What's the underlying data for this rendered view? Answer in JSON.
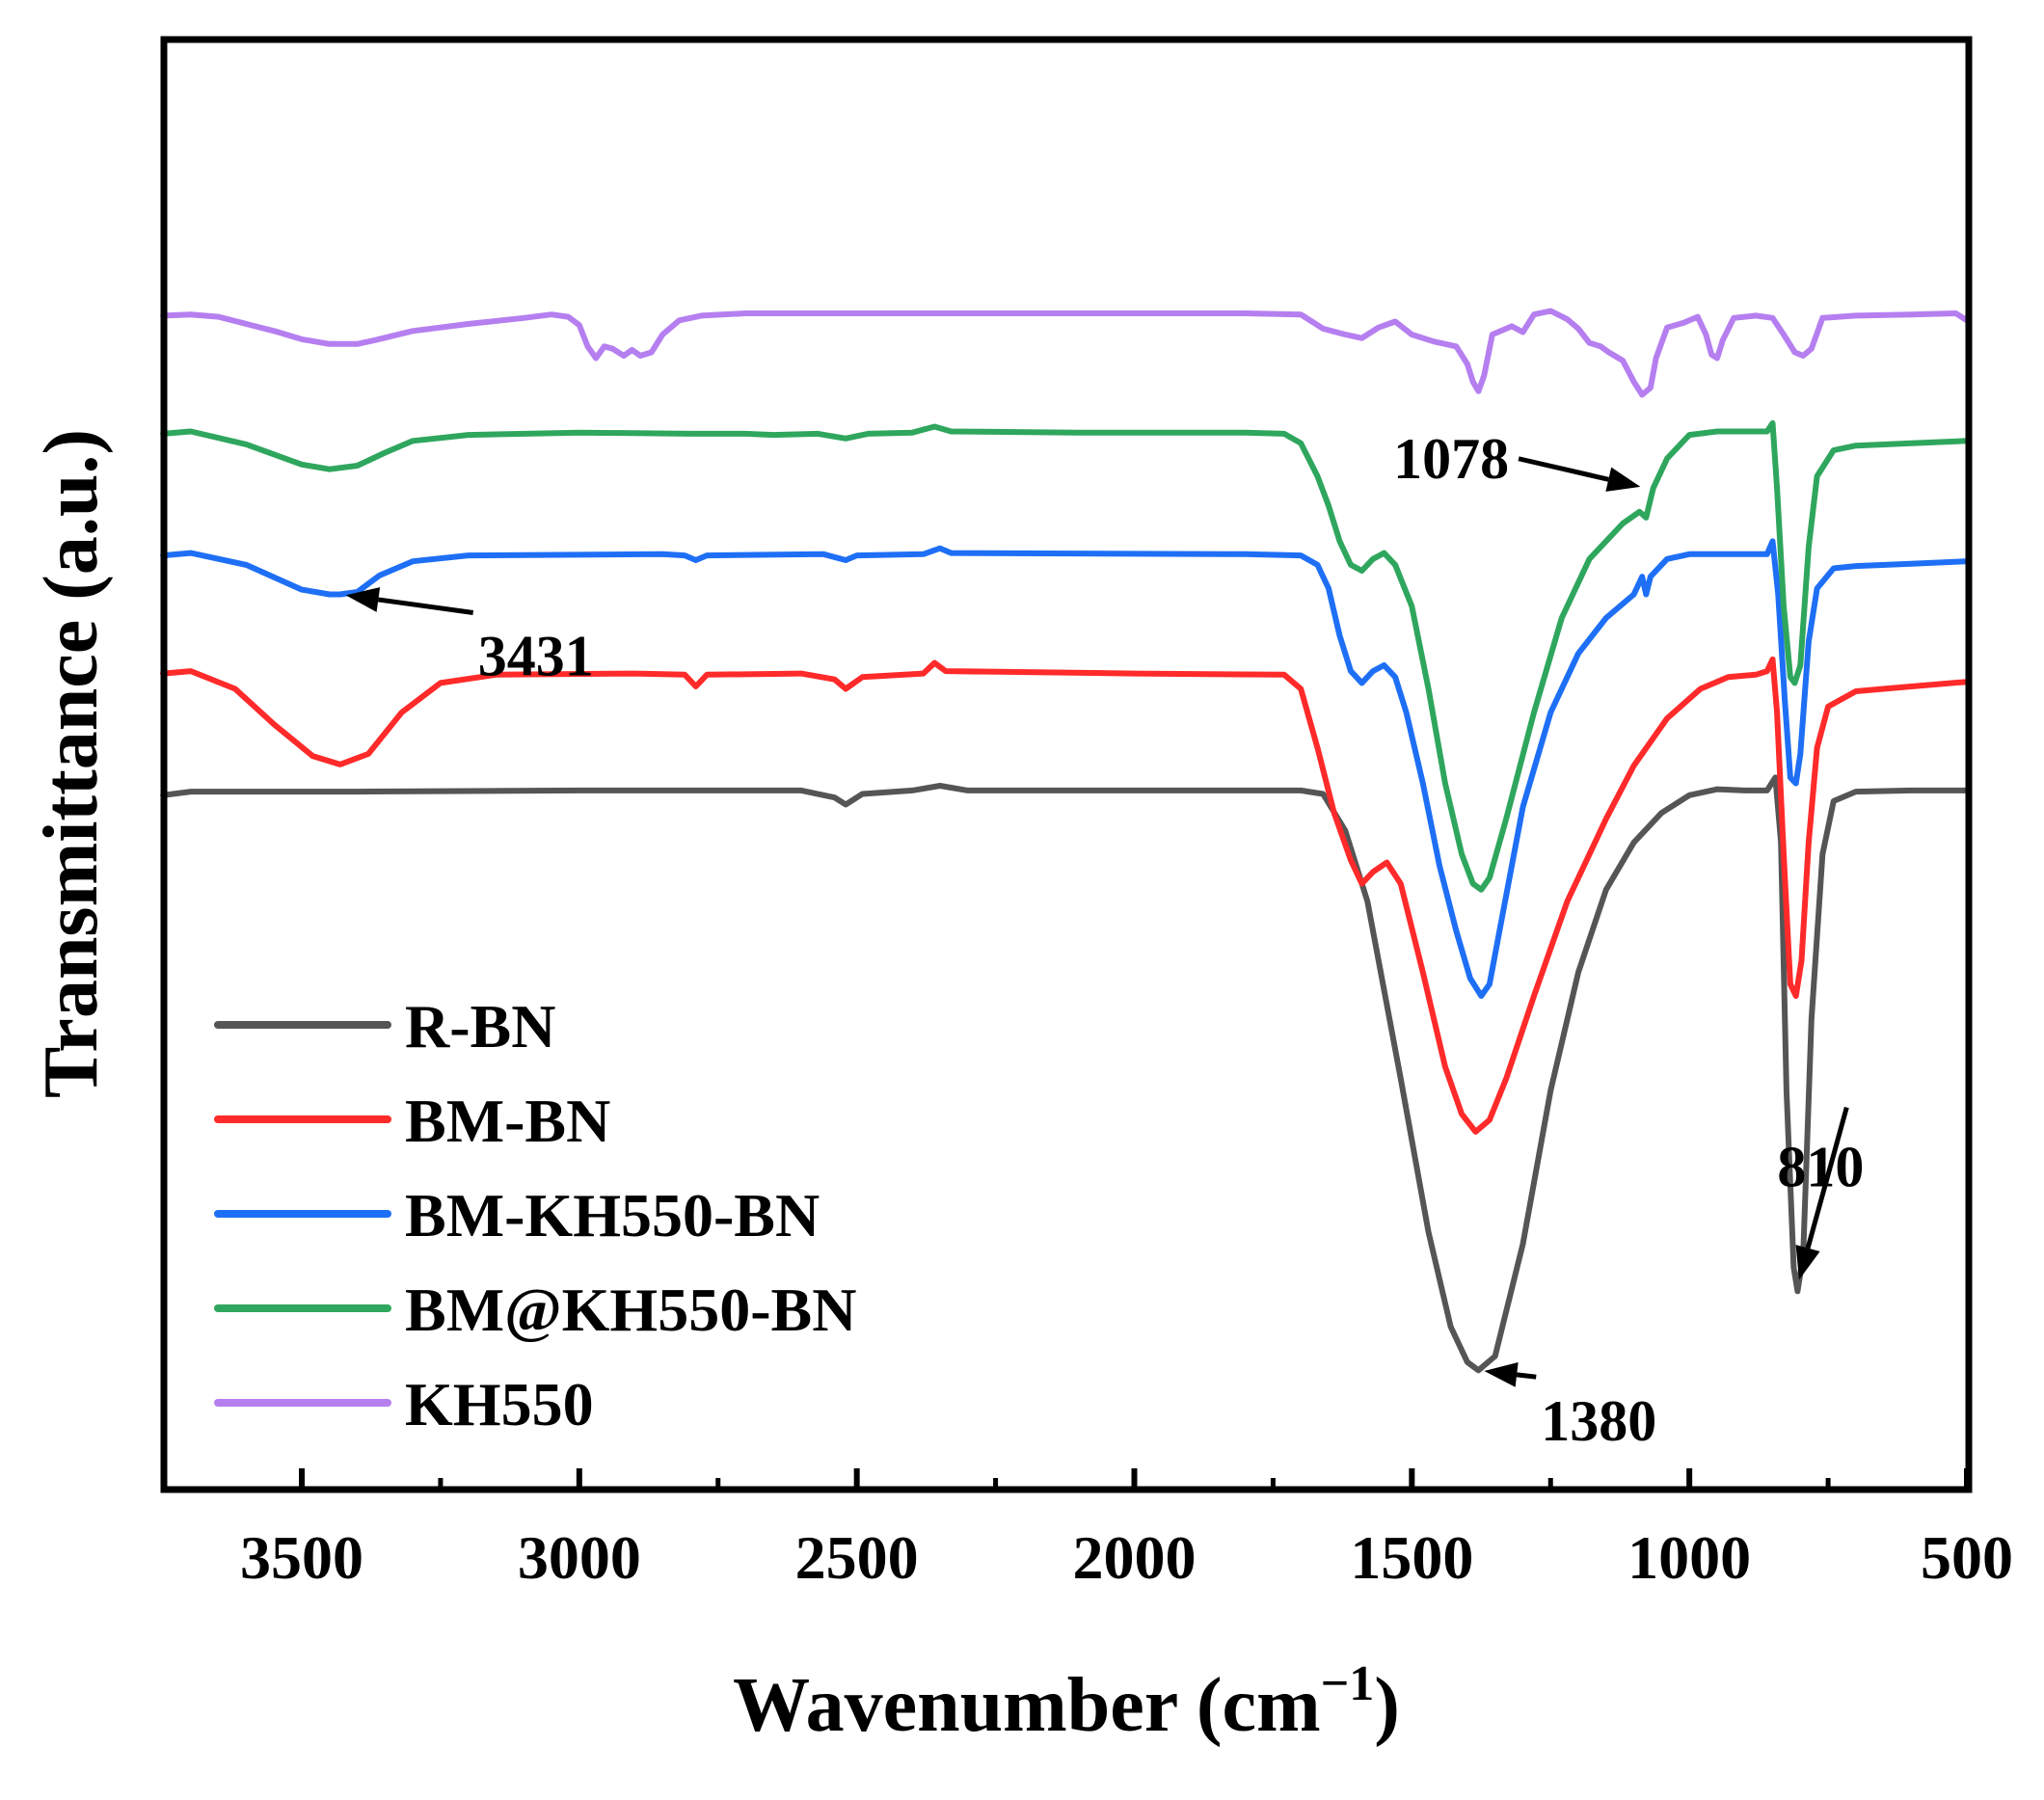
{
  "chart_data": {
    "type": "line",
    "xlabel": "Wavenumber (cm",
    "xlabel_sup": "−1",
    "xlabel_end": ")",
    "ylabel": "Transmittance (a.u.)",
    "xlim": [
      3750,
      500
    ],
    "ylim": [
      0,
      100
    ],
    "x_ticks": [
      3500,
      3000,
      2500,
      2000,
      1500,
      1000,
      500
    ],
    "x_tick_labels": [
      "3500",
      "3000",
      "2500",
      "2000",
      "1500",
      "1000",
      "500"
    ],
    "legend_position": "bottom-left",
    "series": [
      {
        "name": "R-BN",
        "color": "#555555",
        "points": [
          [
            3750,
            49
          ],
          [
            3700,
            49.3
          ],
          [
            3600,
            49.3
          ],
          [
            3400,
            49.3
          ],
          [
            3000,
            49.4
          ],
          [
            2600,
            49.4
          ],
          [
            2540,
            48.8
          ],
          [
            2520,
            48.2
          ],
          [
            2490,
            49.1
          ],
          [
            2400,
            49.4
          ],
          [
            2350,
            49.8
          ],
          [
            2300,
            49.4
          ],
          [
            1800,
            49.4
          ],
          [
            1700,
            49.4
          ],
          [
            1660,
            49.1
          ],
          [
            1620,
            46
          ],
          [
            1580,
            40
          ],
          [
            1520,
            25
          ],
          [
            1470,
            12
          ],
          [
            1430,
            4
          ],
          [
            1400,
            1
          ],
          [
            1380,
            0.3
          ],
          [
            1350,
            1.5
          ],
          [
            1300,
            11
          ],
          [
            1250,
            24
          ],
          [
            1200,
            34
          ],
          [
            1150,
            41
          ],
          [
            1100,
            45
          ],
          [
            1050,
            47.5
          ],
          [
            1000,
            49
          ],
          [
            950,
            49.5
          ],
          [
            900,
            49.4
          ],
          [
            860,
            49.4
          ],
          [
            845,
            50.5
          ],
          [
            835,
            45
          ],
          [
            825,
            24
          ],
          [
            812,
            9
          ],
          [
            805,
            7
          ],
          [
            795,
            10
          ],
          [
            780,
            30
          ],
          [
            760,
            44
          ],
          [
            740,
            48.5
          ],
          [
            700,
            49.3
          ],
          [
            600,
            49.4
          ],
          [
            500,
            49.4
          ]
        ]
      },
      {
        "name": "BM-BN",
        "color": "#ff2a2a",
        "points": [
          [
            3750,
            59.3
          ],
          [
            3700,
            59.5
          ],
          [
            3620,
            58
          ],
          [
            3550,
            55
          ],
          [
            3480,
            52.3
          ],
          [
            3431,
            51.6
          ],
          [
            3380,
            52.5
          ],
          [
            3320,
            56
          ],
          [
            3250,
            58.5
          ],
          [
            3150,
            59.2
          ],
          [
            2900,
            59.3
          ],
          [
            2810,
            59.2
          ],
          [
            2790,
            58.2
          ],
          [
            2770,
            59.2
          ],
          [
            2600,
            59.3
          ],
          [
            2540,
            58.8
          ],
          [
            2520,
            58
          ],
          [
            2490,
            59
          ],
          [
            2380,
            59.3
          ],
          [
            2360,
            60.2
          ],
          [
            2340,
            59.5
          ],
          [
            2000,
            59.3
          ],
          [
            1730,
            59.2
          ],
          [
            1700,
            58
          ],
          [
            1670,
            53
          ],
          [
            1640,
            47.5
          ],
          [
            1610,
            43.5
          ],
          [
            1590,
            41.5
          ],
          [
            1570,
            42.5
          ],
          [
            1545,
            43.3
          ],
          [
            1520,
            41.5
          ],
          [
            1480,
            34
          ],
          [
            1440,
            26
          ],
          [
            1410,
            22
          ],
          [
            1385,
            20.5
          ],
          [
            1360,
            21.5
          ],
          [
            1330,
            25
          ],
          [
            1280,
            32
          ],
          [
            1220,
            40
          ],
          [
            1150,
            47
          ],
          [
            1100,
            51.5
          ],
          [
            1040,
            55.5
          ],
          [
            980,
            58
          ],
          [
            930,
            59
          ],
          [
            880,
            59.2
          ],
          [
            860,
            59.5
          ],
          [
            850,
            60.5
          ],
          [
            842,
            56
          ],
          [
            830,
            44
          ],
          [
            818,
            33
          ],
          [
            808,
            32
          ],
          [
            798,
            35
          ],
          [
            785,
            45
          ],
          [
            770,
            53
          ],
          [
            750,
            56.5
          ],
          [
            700,
            57.8
          ],
          [
            600,
            58.2
          ],
          [
            500,
            58.6
          ]
        ]
      },
      {
        "name": "BM-KH550-BN",
        "color": "#1e6ff5",
        "points": [
          [
            3750,
            69.3
          ],
          [
            3700,
            69.5
          ],
          [
            3600,
            68.5
          ],
          [
            3500,
            66.4
          ],
          [
            3450,
            66
          ],
          [
            3431,
            66
          ],
          [
            3400,
            66.2
          ],
          [
            3360,
            67.6
          ],
          [
            3300,
            68.8
          ],
          [
            3200,
            69.3
          ],
          [
            2850,
            69.4
          ],
          [
            2810,
            69.3
          ],
          [
            2790,
            68.9
          ],
          [
            2770,
            69.3
          ],
          [
            2560,
            69.4
          ],
          [
            2520,
            68.9
          ],
          [
            2500,
            69.3
          ],
          [
            2380,
            69.4
          ],
          [
            2350,
            69.9
          ],
          [
            2330,
            69.5
          ],
          [
            1800,
            69.4
          ],
          [
            1700,
            69.3
          ],
          [
            1670,
            68.5
          ],
          [
            1650,
            66.5
          ],
          [
            1630,
            62.5
          ],
          [
            1610,
            59.5
          ],
          [
            1590,
            58.5
          ],
          [
            1570,
            59.5
          ],
          [
            1550,
            60
          ],
          [
            1530,
            59
          ],
          [
            1510,
            56
          ],
          [
            1480,
            50
          ],
          [
            1450,
            43
          ],
          [
            1420,
            37.5
          ],
          [
            1395,
            33.5
          ],
          [
            1375,
            32
          ],
          [
            1360,
            33
          ],
          [
            1340,
            38
          ],
          [
            1300,
            48
          ],
          [
            1250,
            56
          ],
          [
            1200,
            61
          ],
          [
            1150,
            64
          ],
          [
            1100,
            66
          ],
          [
            1085,
            67.5
          ],
          [
            1078,
            66
          ],
          [
            1070,
            67.5
          ],
          [
            1040,
            69
          ],
          [
            1000,
            69.4
          ],
          [
            900,
            69.4
          ],
          [
            860,
            69.4
          ],
          [
            850,
            70.5
          ],
          [
            840,
            66
          ],
          [
            828,
            57
          ],
          [
            818,
            50.5
          ],
          [
            808,
            50
          ],
          [
            800,
            52.5
          ],
          [
            785,
            62
          ],
          [
            770,
            66.5
          ],
          [
            740,
            68.2
          ],
          [
            700,
            68.4
          ],
          [
            600,
            68.6
          ],
          [
            500,
            68.8
          ]
        ]
      },
      {
        "name": "BM@KH550-BN",
        "color": "#2fa65d",
        "points": [
          [
            3750,
            79.6
          ],
          [
            3700,
            79.8
          ],
          [
            3600,
            78.7
          ],
          [
            3500,
            77
          ],
          [
            3450,
            76.6
          ],
          [
            3400,
            76.9
          ],
          [
            3350,
            78
          ],
          [
            3300,
            79
          ],
          [
            3200,
            79.5
          ],
          [
            3000,
            79.7
          ],
          [
            2800,
            79.6
          ],
          [
            2700,
            79.6
          ],
          [
            2650,
            79.5
          ],
          [
            2570,
            79.6
          ],
          [
            2520,
            79.2
          ],
          [
            2480,
            79.6
          ],
          [
            2400,
            79.7
          ],
          [
            2360,
            80.2
          ],
          [
            2330,
            79.8
          ],
          [
            2100,
            79.7
          ],
          [
            1800,
            79.7
          ],
          [
            1730,
            79.6
          ],
          [
            1700,
            78.8
          ],
          [
            1670,
            76
          ],
          [
            1650,
            73.5
          ],
          [
            1630,
            70.5
          ],
          [
            1610,
            68.5
          ],
          [
            1590,
            68
          ],
          [
            1570,
            69
          ],
          [
            1550,
            69.5
          ],
          [
            1530,
            68.5
          ],
          [
            1500,
            65
          ],
          [
            1470,
            58
          ],
          [
            1440,
            50
          ],
          [
            1410,
            44
          ],
          [
            1390,
            41.5
          ],
          [
            1375,
            41
          ],
          [
            1360,
            42
          ],
          [
            1330,
            47
          ],
          [
            1280,
            56
          ],
          [
            1230,
            64
          ],
          [
            1180,
            69
          ],
          [
            1120,
            72
          ],
          [
            1090,
            73
          ],
          [
            1078,
            72.5
          ],
          [
            1065,
            75
          ],
          [
            1040,
            77.5
          ],
          [
            1000,
            79.5
          ],
          [
            950,
            79.8
          ],
          [
            900,
            79.8
          ],
          [
            860,
            79.8
          ],
          [
            850,
            80.5
          ],
          [
            842,
            75
          ],
          [
            830,
            65
          ],
          [
            818,
            59
          ],
          [
            810,
            58.5
          ],
          [
            800,
            60
          ],
          [
            785,
            70
          ],
          [
            770,
            76
          ],
          [
            740,
            78.2
          ],
          [
            700,
            78.6
          ],
          [
            600,
            78.8
          ],
          [
            500,
            79
          ]
        ]
      },
      {
        "name": "KH550",
        "color": "#b57ff0",
        "points": [
          [
            3750,
            89.6
          ],
          [
            3700,
            89.7
          ],
          [
            3650,
            89.5
          ],
          [
            3600,
            88.9
          ],
          [
            3550,
            88.3
          ],
          [
            3500,
            87.6
          ],
          [
            3450,
            87.2
          ],
          [
            3400,
            87.2
          ],
          [
            3370,
            87.5
          ],
          [
            3300,
            88.3
          ],
          [
            3200,
            88.9
          ],
          [
            3100,
            89.4
          ],
          [
            3050,
            89.7
          ],
          [
            3020,
            89.5
          ],
          [
            3000,
            88.8
          ],
          [
            2985,
            87
          ],
          [
            2970,
            86
          ],
          [
            2955,
            87
          ],
          [
            2940,
            86.8
          ],
          [
            2920,
            86.2
          ],
          [
            2905,
            86.7
          ],
          [
            2890,
            86.2
          ],
          [
            2870,
            86.5
          ],
          [
            2850,
            88
          ],
          [
            2820,
            89.2
          ],
          [
            2780,
            89.6
          ],
          [
            2700,
            89.8
          ],
          [
            2000,
            89.8
          ],
          [
            1800,
            89.8
          ],
          [
            1700,
            89.7
          ],
          [
            1660,
            88.5
          ],
          [
            1620,
            88
          ],
          [
            1590,
            87.7
          ],
          [
            1560,
            88.6
          ],
          [
            1530,
            89.1
          ],
          [
            1500,
            88
          ],
          [
            1460,
            87.4
          ],
          [
            1420,
            87
          ],
          [
            1400,
            85.5
          ],
          [
            1390,
            84
          ],
          [
            1380,
            83.2
          ],
          [
            1370,
            84.5
          ],
          [
            1355,
            88
          ],
          [
            1320,
            88.7
          ],
          [
            1300,
            88.2
          ],
          [
            1280,
            89.7
          ],
          [
            1250,
            90
          ],
          [
            1220,
            89.3
          ],
          [
            1200,
            88.5
          ],
          [
            1180,
            87.3
          ],
          [
            1160,
            87
          ],
          [
            1145,
            86.5
          ],
          [
            1120,
            85.8
          ],
          [
            1100,
            84
          ],
          [
            1085,
            82.9
          ],
          [
            1070,
            83.5
          ],
          [
            1060,
            86
          ],
          [
            1040,
            88.6
          ],
          [
            1010,
            89
          ],
          [
            985,
            89.5
          ],
          [
            970,
            88
          ],
          [
            960,
            86.3
          ],
          [
            950,
            86
          ],
          [
            940,
            87.5
          ],
          [
            920,
            89.4
          ],
          [
            880,
            89.6
          ],
          [
            850,
            89.4
          ],
          [
            830,
            88
          ],
          [
            810,
            86.5
          ],
          [
            795,
            86.2
          ],
          [
            780,
            86.8
          ],
          [
            760,
            89.4
          ],
          [
            700,
            89.6
          ],
          [
            600,
            89.7
          ],
          [
            520,
            89.8
          ],
          [
            500,
            89.2
          ]
        ]
      }
    ],
    "annotations": [
      {
        "label": "3431",
        "point": [
          3431,
          66
        ],
        "text_at": [
          3200,
          62
        ]
      },
      {
        "label": "1078",
        "point": [
          1078,
          75
        ],
        "text_at": [
          1325,
          77
        ]
      },
      {
        "label": "1380",
        "point": [
          1380,
          0.3
        ],
        "text_at": [
          1250,
          -3.2
        ]
      },
      {
        "label": "810",
        "point": [
          805,
          7.5
        ],
        "text_at": [
          760,
          17.5
        ]
      }
    ]
  }
}
